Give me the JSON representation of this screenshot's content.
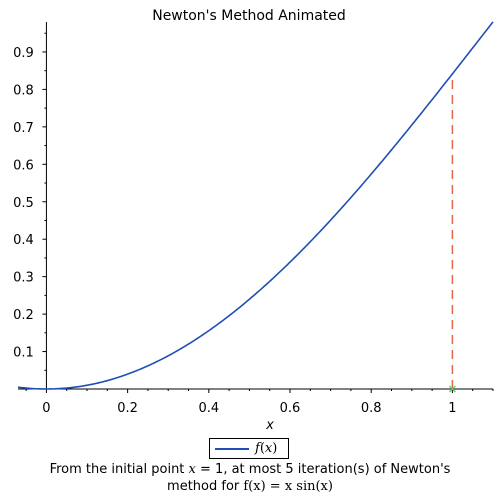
{
  "chart_data": {
    "type": "line",
    "title": "Newton's Method Animated",
    "xlabel": "x",
    "ylabel": "",
    "xlim": [
      -0.07,
      1.1
    ],
    "ylim": [
      0,
      0.98
    ],
    "x_ticks": [
      0,
      0.2,
      0.4,
      0.6,
      0.8,
      1
    ],
    "x_tick_labels": [
      "0",
      "0.2",
      "0.4",
      "0.6",
      "0.8",
      "1"
    ],
    "y_ticks": [
      0.1,
      0.2,
      0.3,
      0.4,
      0.5,
      0.6,
      0.7,
      0.8,
      0.9
    ],
    "y_tick_labels": [
      "0.1",
      "0.2",
      "0.3",
      "0.4",
      "0.5",
      "0.6",
      "0.7",
      "0.8",
      "0.9"
    ],
    "grid": false,
    "legend_position": "bottom",
    "series": [
      {
        "name": "f(x)",
        "function": "x*sin(x)",
        "color": "#1f4fb4",
        "x": [
          -0.07,
          0,
          0.1,
          0.2,
          0.3,
          0.4,
          0.5,
          0.6,
          0.7,
          0.8,
          0.9,
          1.0,
          1.1
        ],
        "y": [
          0.0049,
          0,
          0.00998,
          0.0397,
          0.0887,
          0.1558,
          0.2397,
          0.3388,
          0.4509,
          0.5739,
          0.705,
          0.8415,
          0.9803
        ]
      }
    ],
    "annotations": [
      {
        "type": "vertical-dashed-line",
        "x": 1,
        "y_from": 0,
        "y_to": 0.8415,
        "color": "#e06a45"
      },
      {
        "type": "point",
        "x": 1,
        "y": 0,
        "color": "#6fc26f"
      }
    ]
  },
  "legend": {
    "label_func": "f",
    "label_arg": "x"
  },
  "caption": {
    "line1_a": "From the initial point ",
    "line1_var": "x",
    "line1_b": " = 1, at most 5 iteration(s) of Newton's",
    "line2_a": "method for ",
    "line2_math": "f(x) = x sin(x)"
  }
}
